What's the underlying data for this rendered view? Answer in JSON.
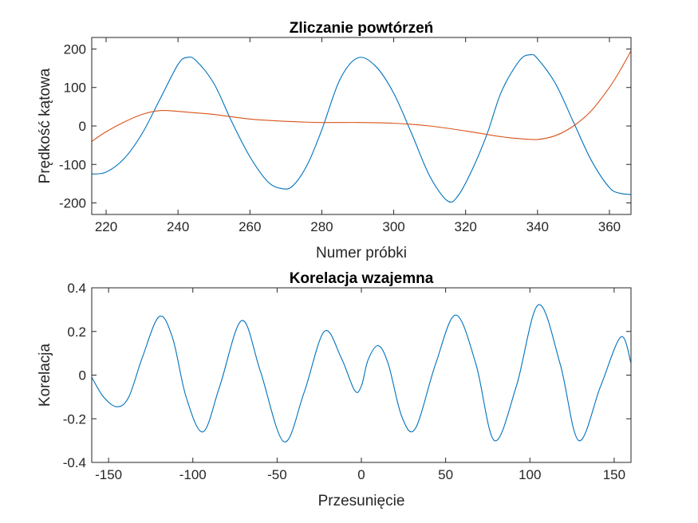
{
  "chart_data": [
    {
      "type": "line",
      "title": "Zliczanie powtórzeń",
      "xlabel": "Numer próbki",
      "ylabel": "Prędkość kątowa",
      "xlim": [
        216,
        366
      ],
      "ylim": [
        -230,
        230
      ],
      "xticks": [
        220,
        240,
        260,
        280,
        300,
        320,
        340,
        360
      ],
      "yticks": [
        -200,
        -100,
        0,
        100,
        200
      ],
      "grid": false,
      "series": [
        {
          "color": "#0072BD",
          "x": [
            216,
            220,
            225,
            230,
            235,
            240,
            242.5,
            245,
            250,
            255,
            260,
            265,
            269,
            272,
            276,
            280,
            285,
            290,
            295,
            300,
            305,
            310,
            315,
            318,
            322,
            326,
            330,
            335,
            338,
            340,
            345,
            350,
            355,
            360,
            363,
            366
          ],
          "y": [
            -125,
            -120,
            -85,
            -20,
            70,
            160,
            178,
            170,
            110,
            10,
            -80,
            -145,
            -163,
            -155,
            -100,
            -10,
            120,
            177,
            155,
            85,
            -20,
            -130,
            -195,
            -180,
            -110,
            -20,
            90,
            170,
            185,
            175,
            110,
            10,
            -90,
            -160,
            -175,
            -178
          ]
        },
        {
          "color": "#D95319",
          "x": [
            216,
            220,
            225,
            230,
            235,
            240,
            245,
            250,
            260,
            270,
            280,
            290,
            300,
            310,
            320,
            330,
            335,
            340,
            345,
            350,
            355,
            360,
            363,
            366
          ],
          "y": [
            -40,
            -15,
            10,
            30,
            40,
            38,
            34,
            30,
            18,
            12,
            9,
            9,
            7,
            0,
            -13,
            -28,
            -33,
            -35,
            -25,
            0,
            40,
            100,
            145,
            195
          ]
        }
      ]
    },
    {
      "type": "line",
      "title": "Korelacja wzajemna",
      "xlabel": "Przesunięcie",
      "ylabel": "Korelacja",
      "xlim": [
        -160,
        160
      ],
      "ylim": [
        -0.4,
        0.4
      ],
      "xticks": [
        -150,
        -100,
        -50,
        0,
        50,
        100,
        150
      ],
      "yticks": [
        -0.4,
        -0.2,
        0,
        0.2,
        0.4
      ],
      "xtick_labels": [
        "-150",
        "-100",
        "-50",
        "0",
        "50",
        "100",
        "150"
      ],
      "ytick_labels": [
        "-0.4",
        "-0.2",
        "0",
        "0.2",
        "0.4"
      ],
      "grid": false,
      "series": [
        {
          "color": "#0072BD",
          "x": [
            -160,
            -153,
            -145,
            -138,
            -130,
            -120,
            -112,
            -104,
            -94,
            -84,
            -71,
            -60,
            -46,
            -34,
            -22,
            -12,
            -4,
            0,
            4,
            10,
            16,
            24,
            32,
            44,
            56,
            68,
            79,
            92,
            105,
            118,
            129,
            142,
            154,
            160
          ],
          "y": [
            -0.01,
            -0.1,
            -0.145,
            -0.1,
            0.08,
            0.268,
            0.17,
            -0.1,
            -0.26,
            -0.05,
            0.25,
            0.02,
            -0.305,
            -0.08,
            0.2,
            0.08,
            -0.07,
            -0.05,
            0.07,
            0.135,
            0.05,
            -0.19,
            -0.245,
            0.05,
            0.275,
            0.05,
            -0.3,
            -0.05,
            0.322,
            0.05,
            -0.3,
            -0.05,
            0.175,
            0.055
          ]
        }
      ]
    }
  ]
}
